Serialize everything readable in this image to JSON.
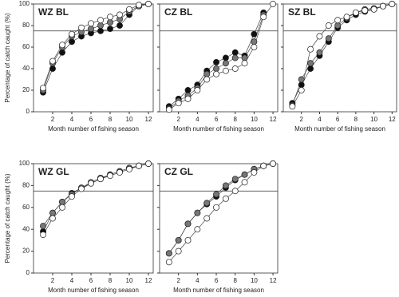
{
  "chart_data": [
    {
      "type": "line",
      "title": "WZ BL",
      "y_label": "Percentage of catch caught (%)",
      "x_label": "Month number of fishing season",
      "x": [
        1,
        2,
        3,
        4,
        5,
        6,
        7,
        8,
        9,
        10,
        11,
        12
      ],
      "xlim": [
        0,
        12.5
      ],
      "xticks": [
        2,
        4,
        6,
        8,
        10,
        12
      ],
      "ylim": [
        0,
        100
      ],
      "yticks": [
        0,
        20,
        40,
        60,
        80,
        100
      ],
      "hline": 75,
      "series": [
        {
          "color": "#111111",
          "values": [
            18,
            40,
            55,
            65,
            70,
            73,
            75,
            77,
            80,
            90,
            98,
            100
          ]
        },
        {
          "color": "#777777",
          "values": [
            20,
            45,
            60,
            70,
            74,
            77,
            80,
            83,
            86,
            93,
            98,
            100
          ]
        },
        {
          "color": "#ffffff",
          "values": [
            22,
            47,
            62,
            72,
            78,
            82,
            85,
            88,
            90,
            95,
            99,
            100
          ]
        }
      ]
    },
    {
      "type": "line",
      "title": "CZ BL",
      "x_label": "Month number of fishing season",
      "x": [
        1,
        2,
        3,
        4,
        5,
        6,
        7,
        8,
        9,
        10,
        11,
        12
      ],
      "xlim": [
        0,
        12.5
      ],
      "xticks": [
        2,
        4,
        6,
        8,
        10,
        12
      ],
      "ylim": [
        0,
        100
      ],
      "yticks": [
        0,
        20,
        40,
        60,
        80,
        100
      ],
      "hline": 75,
      "series": [
        {
          "color": "#111111",
          "values": [
            5,
            12,
            20,
            25,
            38,
            46,
            50,
            55,
            52,
            72,
            92,
            null
          ]
        },
        {
          "color": "#777777",
          "values": [
            3,
            10,
            15,
            22,
            35,
            40,
            45,
            50,
            50,
            65,
            90,
            null
          ]
        },
        {
          "color": "#ffffff",
          "values": [
            2,
            8,
            12,
            20,
            30,
            35,
            38,
            40,
            45,
            60,
            88,
            100
          ]
        }
      ]
    },
    {
      "type": "line",
      "title": "SZ BL",
      "x_label": "Month number of fishing season",
      "x": [
        1,
        2,
        3,
        4,
        5,
        6,
        7,
        8,
        9,
        10,
        11,
        12
      ],
      "xlim": [
        0,
        12.5
      ],
      "xticks": [
        2,
        4,
        6,
        8,
        10,
        12
      ],
      "ylim": [
        0,
        100
      ],
      "yticks": [
        0,
        20,
        40,
        60,
        80,
        100
      ],
      "hline": 75,
      "series": [
        {
          "color": "#111111",
          "values": [
            8,
            25,
            40,
            52,
            65,
            78,
            85,
            90,
            93,
            95,
            98,
            100
          ]
        },
        {
          "color": "#777777",
          "values": [
            6,
            30,
            45,
            55,
            68,
            80,
            87,
            92,
            95,
            96,
            98,
            100
          ]
        },
        {
          "color": "#ffffff",
          "values": [
            5,
            20,
            58,
            70,
            80,
            85,
            88,
            92,
            94,
            95,
            98,
            100
          ]
        }
      ]
    },
    {
      "type": "line",
      "title": "WZ GL",
      "y_label": "Percentage of catch caught (%)",
      "x_label": "Month number of fishing season",
      "x": [
        1,
        2,
        3,
        4,
        5,
        6,
        7,
        8,
        9,
        10,
        11,
        12
      ],
      "xlim": [
        0,
        12.5
      ],
      "xticks": [
        2,
        4,
        6,
        8,
        10,
        12
      ],
      "ylim": [
        0,
        100
      ],
      "yticks": [
        0,
        20,
        40,
        60,
        80,
        100
      ],
      "hline": 75,
      "series": [
        {
          "color": "#111111",
          "values": [
            38,
            55,
            65,
            73,
            78,
            82,
            86,
            90,
            93,
            96,
            98,
            100
          ]
        },
        {
          "color": "#777777",
          "values": [
            43,
            55,
            65,
            72,
            78,
            83,
            87,
            90,
            93,
            96,
            98,
            100
          ]
        },
        {
          "color": "#ffffff",
          "values": [
            35,
            50,
            60,
            70,
            77,
            82,
            86,
            89,
            92,
            95,
            98,
            100
          ]
        }
      ]
    },
    {
      "type": "line",
      "title": "CZ GL",
      "x_label": "Month number of fishing season",
      "x": [
        1,
        2,
        3,
        4,
        5,
        6,
        7,
        8,
        9,
        10,
        11,
        12
      ],
      "xlim": [
        0,
        12.5
      ],
      "xticks": [
        2,
        4,
        6,
        8,
        10,
        12
      ],
      "ylim": [
        0,
        100
      ],
      "yticks": [
        0,
        20,
        40,
        60,
        80,
        100
      ],
      "hline": 75,
      "series": [
        {
          "color": "#111111",
          "values": [
            18,
            30,
            45,
            55,
            63,
            70,
            78,
            85,
            90,
            95,
            98,
            100
          ]
        },
        {
          "color": "#777777",
          "values": [
            18,
            30,
            45,
            55,
            64,
            72,
            80,
            86,
            90,
            95,
            98,
            100
          ]
        },
        {
          "color": "#ffffff",
          "values": [
            10,
            20,
            30,
            40,
            50,
            60,
            68,
            75,
            83,
            92,
            98,
            100
          ]
        }
      ]
    }
  ]
}
